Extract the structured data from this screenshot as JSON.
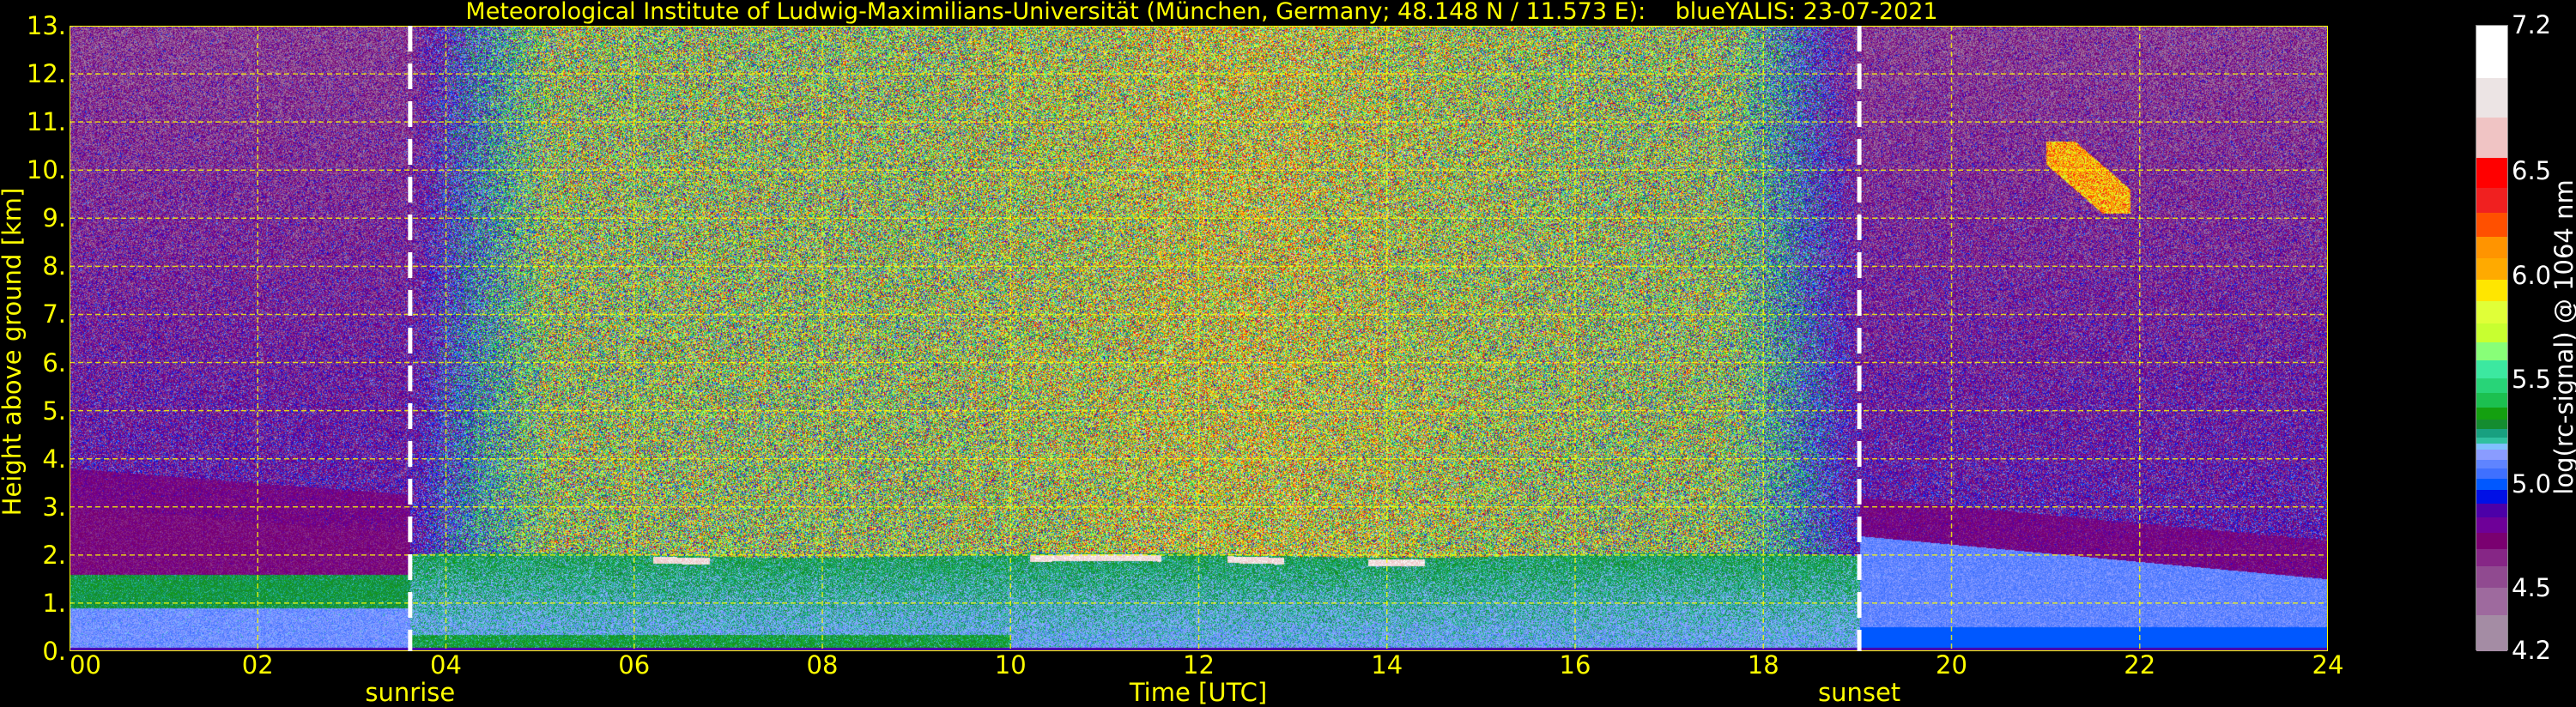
{
  "chart_data": {
    "type": "heatmap",
    "title": "Meteorological Institute of Ludwig-Maximilians-Universität (München, Germany; 48.148 N / 11.573 E):    blueYALIS: 23-07-2021",
    "xlabel": "Time [UTC]",
    "ylabel": "Height above ground [km]",
    "xlim": [
      0,
      24
    ],
    "ylim": [
      0,
      13
    ],
    "x_ticks": [
      0,
      2,
      4,
      6,
      8,
      10,
      12,
      14,
      16,
      18,
      20,
      22,
      24
    ],
    "x_tick_labels": [
      "00",
      "02",
      "04",
      "06",
      "08",
      "10",
      "12",
      "14",
      "16",
      "18",
      "20",
      "22",
      "24"
    ],
    "y_ticks": [
      0,
      1,
      2,
      3,
      4,
      5,
      6,
      7,
      8,
      9,
      10,
      11,
      12,
      13
    ],
    "y_tick_labels": [
      "0.",
      "1.",
      "2.",
      "3.",
      "4.",
      "5.",
      "6.",
      "7.",
      "8.",
      "9.",
      "10.",
      "11.",
      "12.",
      "13."
    ],
    "grid": true,
    "grid_color": "#ffff00",
    "annotations": [
      {
        "label": "sunrise",
        "time": 3.62,
        "line_color": "#ffffff"
      },
      {
        "label": "sunset",
        "time": 19.02,
        "line_color": "#ffffff"
      }
    ],
    "colorbar": {
      "label": "log(rc-signal) @ 1064 nm",
      "range": [
        4.2,
        7.2
      ],
      "ticks": [
        4.2,
        4.5,
        5.0,
        5.5,
        6.0,
        6.5,
        7.2
      ],
      "tick_labels": [
        "4.2",
        "4.5",
        "5.0",
        "5.5",
        "6.0",
        "6.5",
        "7.2"
      ],
      "levels": [
        {
          "from": 4.2,
          "color": "#a48ca4"
        },
        {
          "from": 4.375,
          "color": "#9e6a9e"
        },
        {
          "from": 4.505,
          "color": "#904a90"
        },
        {
          "from": 4.611,
          "color": "#862686"
        },
        {
          "from": 4.693,
          "color": "#7a0070"
        },
        {
          "from": 4.769,
          "color": "#6e0098"
        },
        {
          "from": 4.844,
          "color": "#4c00a8"
        },
        {
          "from": 4.909,
          "color": "#0010e6"
        },
        {
          "from": 4.974,
          "color": "#0058ff"
        },
        {
          "from": 5.028,
          "color": "#3f70ff"
        },
        {
          "from": 5.08,
          "color": "#5f84ff"
        },
        {
          "from": 5.12,
          "color": "#8a9cff"
        },
        {
          "from": 5.169,
          "color": "#80c0ff"
        },
        {
          "from": 5.197,
          "color": "#30c0a0"
        },
        {
          "from": 5.227,
          "color": "#18a080"
        },
        {
          "from": 5.266,
          "color": "#148c30"
        },
        {
          "from": 5.315,
          "color": "#14a010"
        },
        {
          "from": 5.369,
          "color": "#1cc050"
        },
        {
          "from": 5.439,
          "color": "#28d478"
        },
        {
          "from": 5.51,
          "color": "#3ce8a0"
        },
        {
          "from": 5.596,
          "color": "#88ff78"
        },
        {
          "from": 5.685,
          "color": "#c8ff30"
        },
        {
          "from": 5.776,
          "color": "#e0ff38"
        },
        {
          "from": 5.879,
          "color": "#ffe600"
        },
        {
          "from": 5.983,
          "color": "#ffaa00"
        },
        {
          "from": 6.085,
          "color": "#ff9400"
        },
        {
          "from": 6.189,
          "color": "#ff5000"
        },
        {
          "from": 6.303,
          "color": "#f02020"
        },
        {
          "from": 6.424,
          "color": "#ff0000"
        },
        {
          "from": 6.567,
          "color": "#f0c4c4"
        },
        {
          "from": 6.763,
          "color": "#ece4e4"
        },
        {
          "from": 6.95,
          "color": "#ffffff"
        }
      ]
    }
  }
}
